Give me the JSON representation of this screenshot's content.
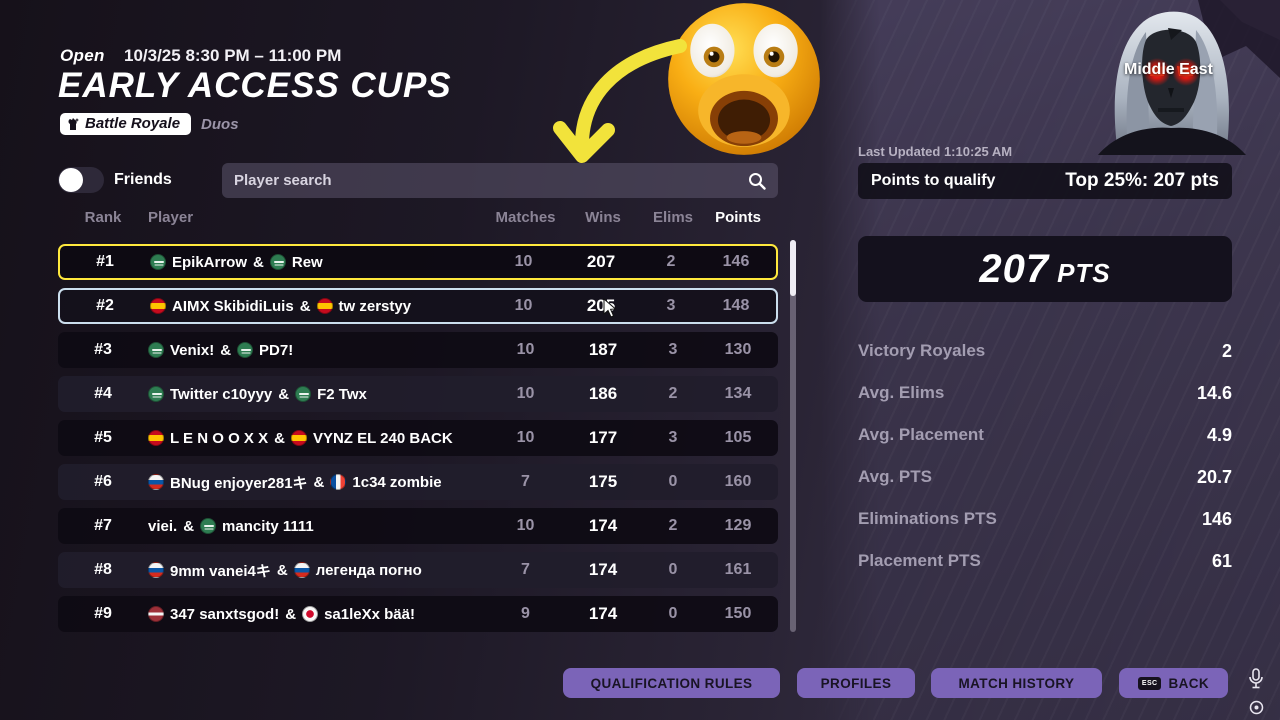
{
  "header": {
    "status": "Open",
    "schedule": "10/3/25 8:30 PM – 11:00 PM",
    "title": "EARLY ACCESS CUPS",
    "mode_badge": "Battle Royale",
    "squad_type": "Duos"
  },
  "controls": {
    "friends_label": "Friends",
    "friends_toggle_state": "off",
    "search_placeholder": "Player search",
    "search_value": "",
    "search_icon": "magnifier"
  },
  "leaderboard": {
    "columns": [
      "Rank",
      "Player",
      "Matches",
      "Wins",
      "Elims",
      "Points"
    ],
    "rows": [
      {
        "rank": "#1",
        "players": [
          {
            "flag": "saudi-arabia",
            "name": "EpikArrow"
          },
          {
            "flag": "saudi-arabia",
            "name": "Rew"
          }
        ],
        "matches": "10",
        "wins": "207",
        "elims": "2",
        "points": "146",
        "highlight": "yellow"
      },
      {
        "rank": "#2",
        "players": [
          {
            "flag": "spain",
            "name": "AIMX SkibidiLuis"
          },
          {
            "flag": "spain",
            "name": "tw zerstyy"
          }
        ],
        "matches": "10",
        "wins": "205",
        "elims": "3",
        "points": "148",
        "highlight": "blue"
      },
      {
        "rank": "#3",
        "players": [
          {
            "flag": "saudi-arabia",
            "name": "Venix!"
          },
          {
            "flag": "saudi-arabia",
            "name": "PD7!"
          }
        ],
        "matches": "10",
        "wins": "187",
        "elims": "3",
        "points": "130",
        "highlight": null
      },
      {
        "rank": "#4",
        "players": [
          {
            "flag": "saudi-arabia",
            "name": "Twitter c10yyy"
          },
          {
            "flag": "saudi-arabia",
            "name": "F2 Twx"
          }
        ],
        "matches": "10",
        "wins": "186",
        "elims": "2",
        "points": "134",
        "highlight": null
      },
      {
        "rank": "#5",
        "players": [
          {
            "flag": "spain",
            "name": "L E N O O X X"
          },
          {
            "flag": "spain",
            "name": "VYNZ EL 240 BACK"
          }
        ],
        "matches": "10",
        "wins": "177",
        "elims": "3",
        "points": "105",
        "highlight": null
      },
      {
        "rank": "#6",
        "players": [
          {
            "flag": "russia",
            "name": "BNug enjoyer281キ"
          },
          {
            "flag": "france",
            "name": "1c34 zombie"
          }
        ],
        "matches": "7",
        "wins": "175",
        "elims": "0",
        "points": "160",
        "highlight": null
      },
      {
        "rank": "#7",
        "players": [
          {
            "flag": null,
            "name": "viei."
          },
          {
            "flag": "saudi-arabia",
            "name": "mancity 1111"
          }
        ],
        "matches": "10",
        "wins": "174",
        "elims": "2",
        "points": "129",
        "highlight": null
      },
      {
        "rank": "#8",
        "players": [
          {
            "flag": "russia",
            "name": "9mm vanei4キ"
          },
          {
            "flag": "russia",
            "name": "легенда погно"
          }
        ],
        "matches": "7",
        "wins": "174",
        "elims": "0",
        "points": "161",
        "highlight": null
      },
      {
        "rank": "#9",
        "players": [
          {
            "flag": "latvia",
            "name": "347 sanxtsgod!"
          },
          {
            "flag": "japan",
            "name": "sa1leXx bää!"
          }
        ],
        "matches": "9",
        "wins": "174",
        "elims": "0",
        "points": "150",
        "highlight": null
      }
    ],
    "player_separator": "&"
  },
  "region_panel": {
    "region": "Middle East",
    "last_updated": "Last Updated 1:10:25 AM",
    "qualify_label": "Points to qualify",
    "qualify_value": "Top 25%: 207 pts",
    "points_value": "207",
    "points_unit": "PTS",
    "stats": [
      {
        "label": "Victory Royales",
        "value": "2"
      },
      {
        "label": "Avg. Elims",
        "value": "14.6"
      },
      {
        "label": "Avg. Placement",
        "value": "4.9"
      },
      {
        "label": "Avg. PTS",
        "value": "20.7"
      },
      {
        "label": "Eliminations PTS",
        "value": "146"
      },
      {
        "label": "Placement PTS",
        "value": "61"
      }
    ]
  },
  "footer": {
    "buttons": [
      {
        "label": "QUALIFICATION RULES"
      },
      {
        "label": "PROFILES"
      },
      {
        "label": "MATCH HISTORY"
      },
      {
        "label": "BACK",
        "key": "ESC"
      }
    ]
  },
  "colors": {
    "highlight_yellow": "#ffe93d",
    "highlight_blue": "#ccdfee",
    "button_purple": "#7b64b8",
    "background_purple": "#443d57",
    "row_dark": "#0e0b14",
    "row_light": "#211d2b"
  }
}
